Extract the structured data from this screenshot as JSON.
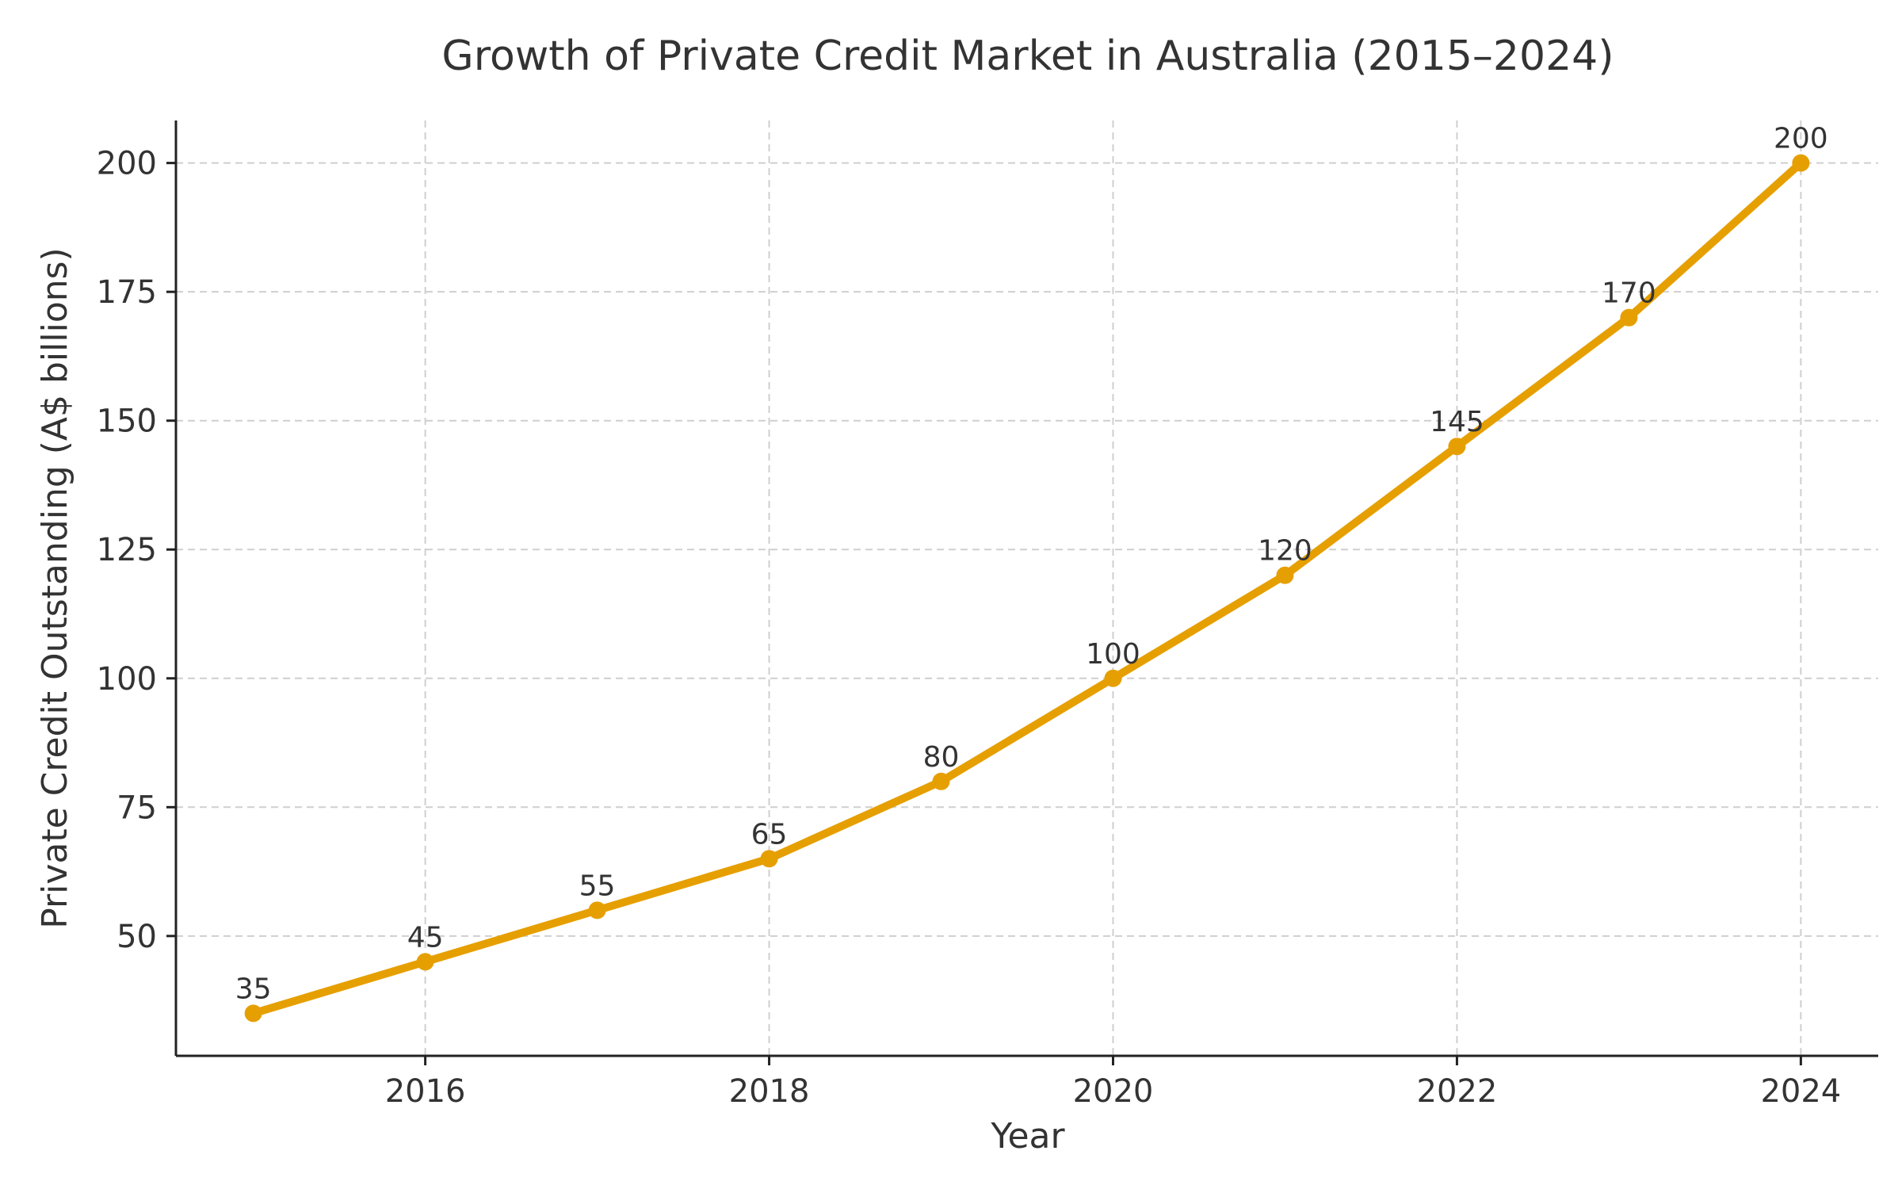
{
  "chart_data": {
    "type": "line",
    "title": "Growth of Private Credit Market in Australia (2015–2024)",
    "xlabel": "Year",
    "ylabel": "Private Credit Outstanding (A$ billions)",
    "x": [
      2015,
      2016,
      2017,
      2018,
      2019,
      2020,
      2021,
      2022,
      2023,
      2024
    ],
    "series": [
      {
        "values": [
          35,
          45,
          55,
          65,
          80,
          100,
          120,
          145,
          170,
          200
        ]
      }
    ],
    "xticks": [
      "2016",
      "2018",
      "2020",
      "2022",
      "2024"
    ],
    "yticks": [
      "50",
      "75",
      "100",
      "125",
      "150",
      "175",
      "200"
    ],
    "xlim": [
      2014.55,
      2024.45
    ],
    "ylim": [
      26.75,
      208.25
    ],
    "grid": true,
    "data_labels": true,
    "colors": {
      "line": "#E69F00",
      "text": "#333333",
      "grid": "#cfcfcf",
      "axis": "#222222"
    }
  }
}
